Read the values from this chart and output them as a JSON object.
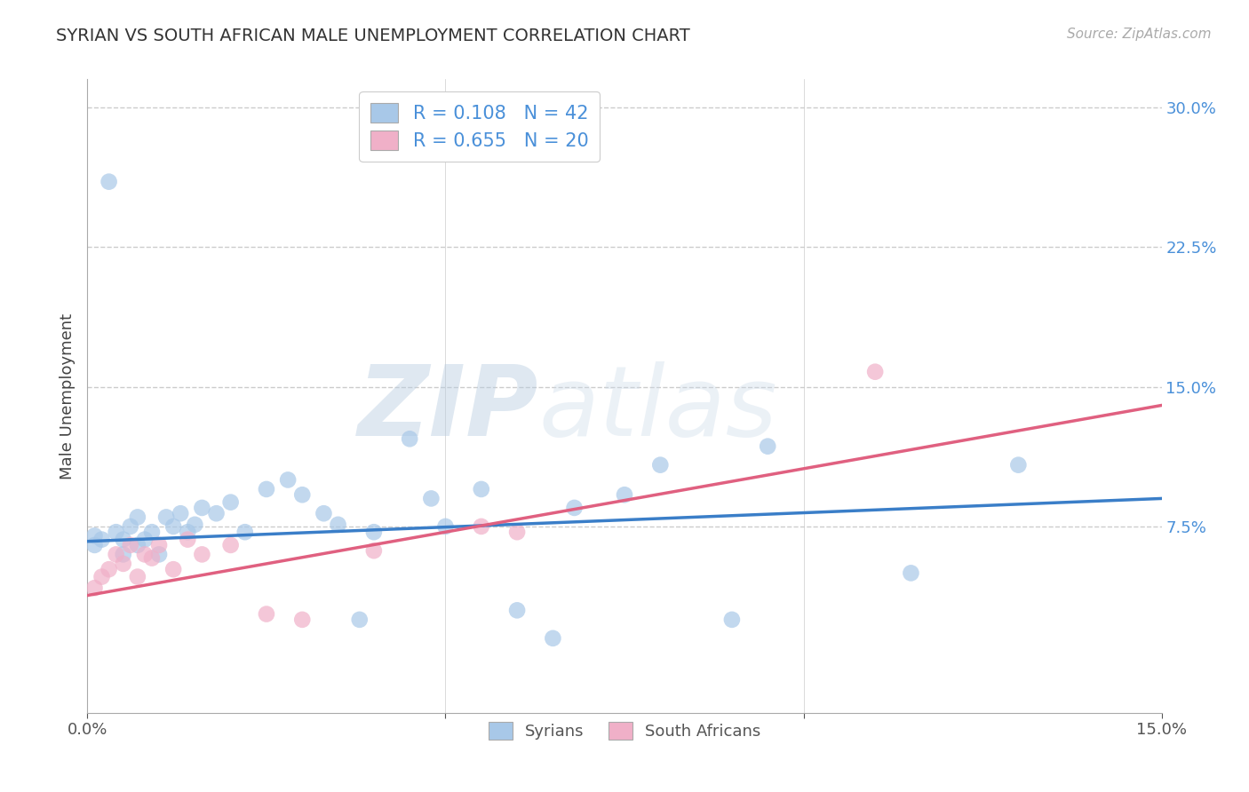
{
  "title": "SYRIAN VS SOUTH AFRICAN MALE UNEMPLOYMENT CORRELATION CHART",
  "source": "Source: ZipAtlas.com",
  "ylabel": "Male Unemployment",
  "x_min": 0.0,
  "x_max": 0.15,
  "y_min": -0.025,
  "y_max": 0.315,
  "x_ticks": [
    0.0,
    0.05,
    0.1,
    0.15
  ],
  "x_tick_labels": [
    "0.0%",
    "",
    "",
    "15.0%"
  ],
  "y_ticks": [
    0.075,
    0.15,
    0.225,
    0.3
  ],
  "y_tick_labels": [
    "7.5%",
    "15.0%",
    "22.5%",
    "30.0%"
  ],
  "grid_color": "#cccccc",
  "background_color": "#ffffff",
  "syrian_color": "#a8c8e8",
  "sa_color": "#f0b0c8",
  "syrian_line_color": "#3a7ec8",
  "sa_line_color": "#e06080",
  "tick_color": "#4a90d9",
  "syrian_r": 0.108,
  "syrian_n": 42,
  "sa_r": 0.655,
  "sa_n": 20,
  "legend_label_syrian": "Syrians",
  "legend_label_sa": "South Africans",
  "watermark_zip": "ZIP",
  "watermark_atlas": "atlas",
  "syrians_x": [
    0.001,
    0.001,
    0.002,
    0.003,
    0.004,
    0.005,
    0.005,
    0.006,
    0.007,
    0.007,
    0.008,
    0.009,
    0.01,
    0.011,
    0.012,
    0.013,
    0.014,
    0.015,
    0.016,
    0.018,
    0.02,
    0.022,
    0.025,
    0.028,
    0.03,
    0.033,
    0.035,
    0.038,
    0.04,
    0.045,
    0.048,
    0.05,
    0.055,
    0.06,
    0.065,
    0.068,
    0.075,
    0.08,
    0.09,
    0.095,
    0.115,
    0.13
  ],
  "syrians_y": [
    0.065,
    0.07,
    0.068,
    0.26,
    0.072,
    0.06,
    0.068,
    0.075,
    0.065,
    0.08,
    0.068,
    0.072,
    0.06,
    0.08,
    0.075,
    0.082,
    0.072,
    0.076,
    0.085,
    0.082,
    0.088,
    0.072,
    0.095,
    0.1,
    0.092,
    0.082,
    0.076,
    0.025,
    0.072,
    0.122,
    0.09,
    0.075,
    0.095,
    0.03,
    0.015,
    0.085,
    0.092,
    0.108,
    0.025,
    0.118,
    0.05,
    0.108
  ],
  "sa_x": [
    0.001,
    0.002,
    0.003,
    0.004,
    0.005,
    0.006,
    0.007,
    0.008,
    0.009,
    0.01,
    0.012,
    0.014,
    0.016,
    0.02,
    0.025,
    0.03,
    0.04,
    0.055,
    0.06,
    0.11
  ],
  "sa_y": [
    0.042,
    0.048,
    0.052,
    0.06,
    0.055,
    0.065,
    0.048,
    0.06,
    0.058,
    0.065,
    0.052,
    0.068,
    0.06,
    0.065,
    0.028,
    0.025,
    0.062,
    0.075,
    0.072,
    0.158
  ],
  "syrian_trend_x0": 0.0,
  "syrian_trend_y0": 0.067,
  "syrian_trend_x1": 0.15,
  "syrian_trend_y1": 0.09,
  "sa_trend_x0": 0.0,
  "sa_trend_y0": 0.038,
  "sa_trend_x1": 0.15,
  "sa_trend_y1": 0.14
}
